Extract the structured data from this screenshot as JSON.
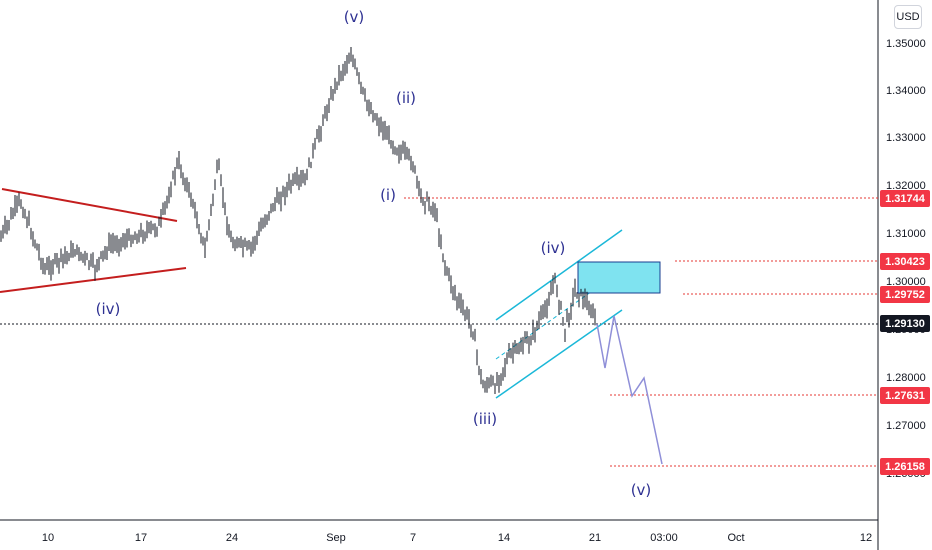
{
  "currency_button": "USD",
  "chart_data": {
    "type": "candlestick",
    "y_axis": {
      "range": [
        1.255,
        1.358
      ],
      "ticks": [
        "1.35000",
        "1.34000",
        "1.33000",
        "1.32000",
        "1.31000",
        "1.30000",
        "1.29000",
        "1.28000",
        "1.27000",
        "1.26000"
      ]
    },
    "x_axis": {
      "ticks": [
        "10",
        "17",
        "24",
        "Sep",
        "7",
        "14",
        "21",
        "03:00",
        "Oct",
        "12"
      ]
    },
    "price_labels": [
      {
        "value": "1.31744",
        "color": "#f23645"
      },
      {
        "value": "1.30423",
        "color": "#f23645"
      },
      {
        "value": "1.29752",
        "color": "#f23645"
      },
      {
        "value": "1.29130",
        "color": "#131722"
      },
      {
        "value": "1.27631",
        "color": "#f23645"
      },
      {
        "value": "1.26158",
        "color": "#f23645"
      }
    ],
    "wave_labels": [
      "(v)",
      "(ii)",
      "(i)",
      "(iv)",
      "(iii)",
      "(iv)",
      "(v)"
    ],
    "colors": {
      "candle": "#131722",
      "trendline": "#c41e1e",
      "channel": "#1bb8d8",
      "zone": "#7fe3f0",
      "projection": "#8f8fd8",
      "level": "#e53935"
    }
  }
}
